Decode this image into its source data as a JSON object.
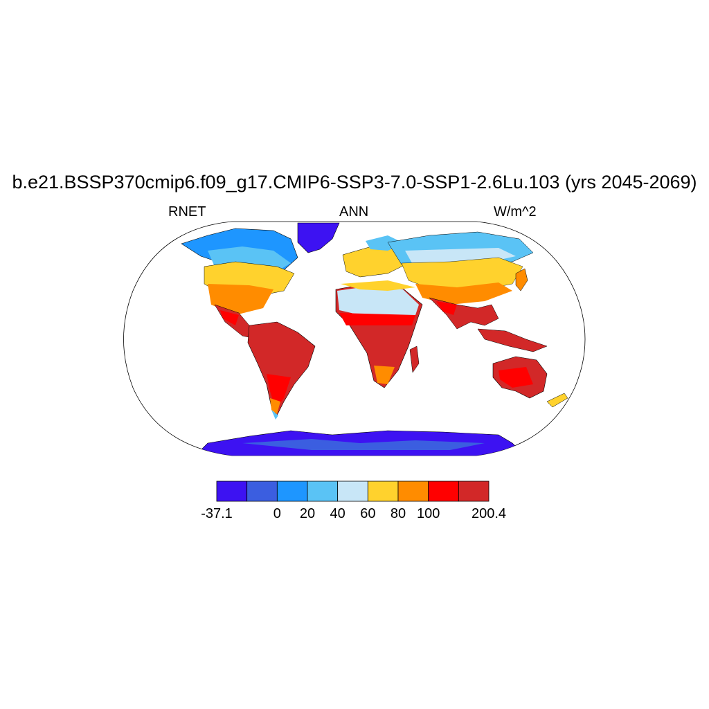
{
  "title": "b.e21.BSSP370cmip6.f09_g17.CMIP6-SSP3-7.0-SSP1-2.6Lu.103 (yrs 2045-2069)",
  "subtitle_left": "RNET",
  "subtitle_center": "ANN",
  "subtitle_right": "W/m^2",
  "colorbar": {
    "colors": [
      "#3d12f2",
      "#3b5ee0",
      "#1e96ff",
      "#5ac3f5",
      "#c8e6f7",
      "#ffd22d",
      "#ff8c00",
      "#ff0000",
      "#d22828"
    ],
    "labels": [
      "-37.1",
      "0",
      "20",
      "40",
      "60",
      "80",
      "100",
      "200.4"
    ]
  },
  "map": {
    "projection": "Robinson",
    "ocean_color": "#ffffff",
    "land_outline": "#000000"
  }
}
